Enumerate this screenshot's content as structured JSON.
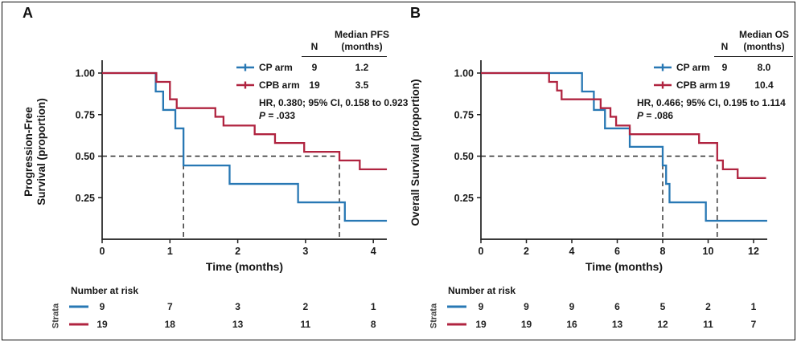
{
  "figure": {
    "background": "#ffffff",
    "border_color": "#0c0c0c"
  },
  "colors": {
    "cp": "#2878b4",
    "cpb": "#b02440",
    "dash": "#2b2b2b",
    "axis": "#1f1f1f"
  },
  "panels": [
    {
      "label": "A",
      "ylabel_lines": [
        "Progression-Free",
        "Survival (proportion)"
      ],
      "xlabel": "Time (months)",
      "legend": {
        "header_median": "Median PFS",
        "header_n": "N",
        "header_months": "(months)",
        "rows": [
          {
            "name": "CP arm",
            "n": "9",
            "median": "1.2",
            "color_key": "cp"
          },
          {
            "name": "CPB arm",
            "n": "19",
            "median": "3.5",
            "color_key": "cpb"
          }
        ],
        "hr_text": "HR, 0.380; 95% CI, 0.158 to 0.923",
        "p_label": "P",
        "p_rest": " = .033"
      },
      "risk_table": {
        "title": "Number at risk",
        "strata": "Strata"
      }
    },
    {
      "label": "B",
      "ylabel_lines": [
        "Overall Survival (proportion)",
        ""
      ],
      "xlabel": "Time (months)",
      "legend": {
        "header_median": "Median OS",
        "header_n": "N",
        "header_months": "(months)",
        "rows": [
          {
            "name": "CP arm",
            "n": "9",
            "median": "8.0",
            "color_key": "cp"
          },
          {
            "name": "CPB arm",
            "n": "19",
            "median": "10.4",
            "color_key": "cpb"
          }
        ],
        "hr_text": "HR, 0.466; 95% CI, 0.195 to 1.114",
        "p_label": "P",
        "p_rest": " = .086"
      },
      "risk_table": {
        "title": "Number at risk",
        "strata": "Strata"
      }
    }
  ],
  "chart_data": [
    {
      "type": "line",
      "subtype": "kaplan-meier-step",
      "panel": "A",
      "title": "",
      "xlabel": "Time (months)",
      "ylabel": "Progression-Free Survival (proportion)",
      "xticks": [
        0,
        1,
        2,
        3,
        4
      ],
      "yticks": [
        1.0,
        0.75,
        0.5,
        0.25
      ],
      "ytick_labels": [
        "1.00",
        "0.75",
        "0.50",
        "0.25"
      ],
      "xlim": [
        0,
        4.2
      ],
      "ylim": [
        0,
        1.0
      ],
      "grid": false,
      "legend_position": "top-right",
      "median_guides": {
        "y": 0.5,
        "x_values": [
          1.2,
          3.5
        ]
      },
      "series": [
        {
          "name": "CP arm",
          "color_key": "cp",
          "n": 9,
          "median_months": 1.2,
          "start": [
            0,
            1.0
          ],
          "end_t": 4.2,
          "events": [
            [
              0.79,
              0.889
            ],
            [
              0.9,
              0.778
            ],
            [
              1.08,
              0.667
            ],
            [
              1.2,
              0.444
            ],
            [
              1.88,
              0.333
            ],
            [
              2.89,
              0.222
            ],
            [
              3.58,
              0.111
            ]
          ]
        },
        {
          "name": "CPB arm",
          "color_key": "cpb",
          "n": 19,
          "median_months": 3.5,
          "start": [
            0,
            1.0
          ],
          "end_t": 4.2,
          "events": [
            [
              0.8,
              0.947
            ],
            [
              1.0,
              0.842
            ],
            [
              1.1,
              0.789
            ],
            [
              1.67,
              0.737
            ],
            [
              1.79,
              0.684
            ],
            [
              2.25,
              0.632
            ],
            [
              2.55,
              0.579
            ],
            [
              2.98,
              0.526
            ],
            [
              3.5,
              0.474
            ],
            [
              3.8,
              0.421
            ]
          ]
        }
      ],
      "number_at_risk": [
        {
          "name": "CP arm",
          "color_key": "cp",
          "counts": [
            "9",
            "7",
            "3",
            "2",
            "1"
          ]
        },
        {
          "name": "CPB arm",
          "color_key": "cpb",
          "counts": [
            "19",
            "18",
            "13",
            "11",
            "8"
          ]
        }
      ],
      "stats": {
        "hr": "HR, 0.380; 95% CI, 0.158 to 0.923",
        "p": "P = .033"
      }
    },
    {
      "type": "line",
      "subtype": "kaplan-meier-step",
      "panel": "B",
      "title": "",
      "xlabel": "Time (months)",
      "ylabel": "Overall Survival (proportion)",
      "xticks": [
        0,
        2,
        4,
        6,
        8,
        10,
        12
      ],
      "yticks": [
        1.0,
        0.75,
        0.5,
        0.25
      ],
      "ytick_labels": [
        "1.00",
        "0.75",
        "0.50",
        "0.25"
      ],
      "xlim": [
        0,
        12.6
      ],
      "ylim": [
        0,
        1.0
      ],
      "grid": false,
      "legend_position": "top-right",
      "median_guides": {
        "y": 0.5,
        "x_values": [
          8.0,
          10.4
        ]
      },
      "series": [
        {
          "name": "CP arm",
          "color_key": "cp",
          "n": 9,
          "median_months": 8.0,
          "start": [
            0,
            1.0
          ],
          "end_t": 12.6,
          "events": [
            [
              4.45,
              0.889
            ],
            [
              4.97,
              0.778
            ],
            [
              5.46,
              0.667
            ],
            [
              6.55,
              0.556
            ],
            [
              8.0,
              0.444
            ],
            [
              8.15,
              0.333
            ],
            [
              8.3,
              0.222
            ],
            [
              9.9,
              0.111
            ]
          ]
        },
        {
          "name": "CPB arm",
          "color_key": "cpb",
          "n": 19,
          "median_months": 10.4,
          "start": [
            0,
            1.0
          ],
          "end_t": 12.55,
          "events": [
            [
              3.0,
              0.947
            ],
            [
              3.35,
              0.895
            ],
            [
              3.55,
              0.842
            ],
            [
              5.27,
              0.789
            ],
            [
              5.7,
              0.737
            ],
            [
              5.95,
              0.684
            ],
            [
              6.55,
              0.632
            ],
            [
              9.6,
              0.579
            ],
            [
              10.4,
              0.474
            ],
            [
              10.65,
              0.421
            ],
            [
              11.3,
              0.368
            ]
          ]
        }
      ],
      "number_at_risk": [
        {
          "name": "CP arm",
          "color_key": "cp",
          "counts": [
            "9",
            "9",
            "9",
            "6",
            "5",
            "2",
            "1"
          ]
        },
        {
          "name": "CPB arm",
          "color_key": "cpb",
          "counts": [
            "19",
            "19",
            "16",
            "13",
            "12",
            "11",
            "7"
          ]
        }
      ],
      "stats": {
        "hr": "HR, 0.466; 95% CI, 0.195 to 1.114",
        "p": "P = .086"
      }
    }
  ]
}
